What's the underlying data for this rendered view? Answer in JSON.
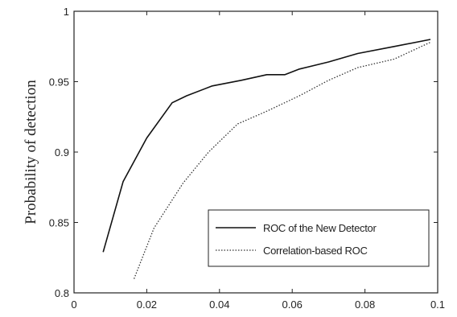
{
  "chart_data": {
    "type": "line",
    "ylabel": "Probability of detection",
    "xlabel": "",
    "title": "",
    "xlim": [
      0,
      0.1
    ],
    "ylim": [
      0.8,
      1
    ],
    "xticks": [
      0,
      0.02,
      0.04,
      0.06,
      0.08,
      0.1
    ],
    "xtick_labels": [
      "0",
      "0.02",
      "0.04",
      "0.06",
      "0.08",
      "0.1"
    ],
    "yticks": [
      0.8,
      0.85,
      0.9,
      0.95,
      1
    ],
    "ytick_labels": [
      "0.8",
      "0.85",
      "0.9",
      "0.95",
      "1"
    ],
    "grid": false,
    "legend_position": "bottom-right",
    "series": [
      {
        "name": "ROC of the New Detector",
        "style": "solid",
        "color": "#111111",
        "x": [
          0.008,
          0.0135,
          0.02,
          0.027,
          0.031,
          0.038,
          0.046,
          0.053,
          0.058,
          0.062,
          0.07,
          0.078,
          0.088,
          0.098
        ],
        "y": [
          0.829,
          0.879,
          0.91,
          0.935,
          0.94,
          0.947,
          0.951,
          0.955,
          0.955,
          0.959,
          0.964,
          0.97,
          0.975,
          0.98
        ]
      },
      {
        "name": "Correlation-based ROC",
        "style": "dotted",
        "color": "#333333",
        "x": [
          0.0165,
          0.022,
          0.03,
          0.037,
          0.045,
          0.053,
          0.062,
          0.07,
          0.078,
          0.088,
          0.098
        ],
        "y": [
          0.81,
          0.846,
          0.878,
          0.9,
          0.92,
          0.929,
          0.94,
          0.951,
          0.96,
          0.966,
          0.978
        ]
      }
    ]
  }
}
